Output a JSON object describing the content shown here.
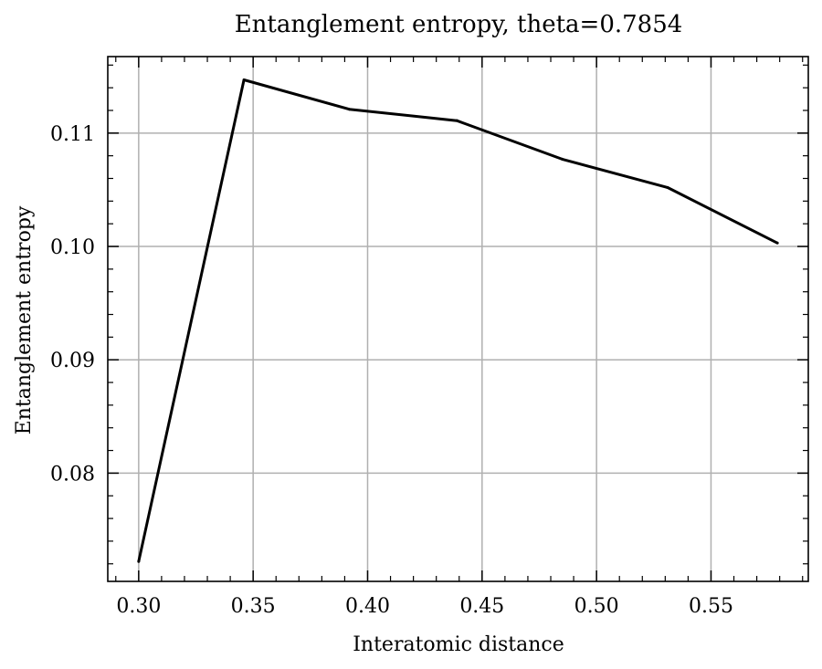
{
  "chart_data": {
    "type": "line",
    "title": "Entanglement entropy, theta=0.7854",
    "xlabel": "Interatomic distance",
    "ylabel": "Entanglement entropy",
    "xlim": [
      0.2865,
      0.5925
    ],
    "ylim": [
      0.07045,
      0.11675
    ],
    "grid": true,
    "x_ticks": [
      0.3,
      0.35,
      0.4,
      0.45,
      0.5,
      0.55
    ],
    "x_tick_labels": [
      "0.30",
      "0.35",
      "0.40",
      "0.45",
      "0.50",
      "0.55"
    ],
    "y_ticks": [
      0.08,
      0.09,
      0.1,
      0.11
    ],
    "y_tick_labels": [
      "0.08",
      "0.09",
      "0.10",
      "0.11"
    ],
    "x_minor_step": 0.01,
    "y_minor_step": 0.002,
    "series": [
      {
        "name": "Entanglement entropy",
        "color": "#000000",
        "x": [
          0.3,
          0.346,
          0.392,
          0.439,
          0.485,
          0.531,
          0.579
        ],
        "y": [
          0.0722,
          0.1147,
          0.1121,
          0.1111,
          0.1077,
          0.1052,
          0.1003
        ]
      }
    ]
  }
}
